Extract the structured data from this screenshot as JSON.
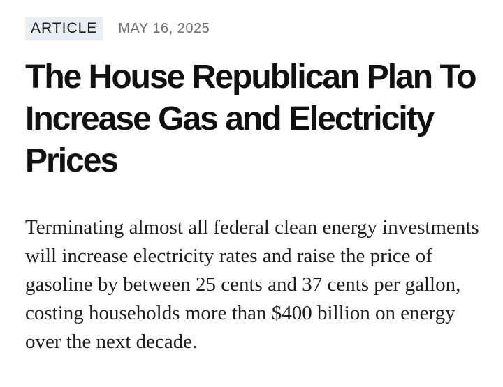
{
  "article": {
    "badge": "ARTICLE",
    "date": "MAY 16, 2025",
    "headline": "The House Republican Plan To Increase Gas and Electricity Prices",
    "dek": "Terminating almost all federal clean energy investments will increase electricity rates and raise the price of gasoline by between 25 cents and 37 cents per gallon, costing households more than $400 billion on energy over the next decade."
  },
  "colors": {
    "badge_background": "#e9eef3",
    "headline": "#111111",
    "date": "#6f6f6f",
    "body_text": "#1e1e1e"
  }
}
